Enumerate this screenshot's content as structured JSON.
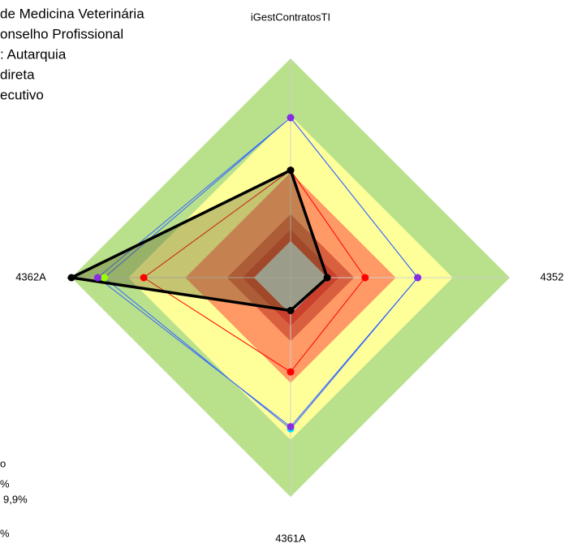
{
  "chart_data": {
    "type": "radar",
    "axes": [
      "iGestContratosTI",
      "4352",
      "4361A",
      "4362A"
    ],
    "rlim": [
      0,
      1
    ],
    "bands": [
      {
        "value": 1.0,
        "color": "#b9e08b"
      },
      {
        "value": 0.74,
        "color": "#ffff99"
      },
      {
        "value": 0.48,
        "color": "#ff9966"
      },
      {
        "value": 0.29,
        "color": "#d9603f"
      },
      {
        "value": 0.22,
        "color": "#c9402c"
      },
      {
        "value": 0.167,
        "color": "#c0c0c0"
      }
    ],
    "series": [
      {
        "color": "#3366ff",
        "values": [
          0.73,
          0.58,
          0.69,
          0.85
        ],
        "point_colors": [
          "#00e5ff",
          "#00e5ff",
          "#00e5ff",
          "#99ff00"
        ],
        "width": 1
      },
      {
        "color": "#3366ff",
        "values": [
          0.73,
          0.58,
          0.68,
          0.88
        ],
        "point_colors": [
          "#8a2be2",
          "#8a2be2",
          "#8a2be2",
          "#8a2be2"
        ],
        "width": 1
      },
      {
        "color": "#ff0000",
        "values": [
          0.49,
          0.34,
          0.43,
          0.67
        ],
        "point_colors": [
          "#ff0000",
          "#ff0000",
          "#ff0000",
          "#ff0000"
        ],
        "width": 1
      },
      {
        "color": "#000000",
        "values": [
          0.49,
          0.167,
          0.15,
          1.0
        ],
        "point_colors": [
          "#000000",
          "#000000",
          "#000000",
          "#000000"
        ],
        "width": 3.5,
        "fill": "rgba(90,90,40,0.35)"
      }
    ],
    "legend_top": [
      "de Medicina Veterinária",
      "onselho Profissional",
      ": Autarquia",
      "direta",
      "ecutivo"
    ],
    "legend_bottom": [
      "o",
      "%",
      "9,9%",
      "%"
    ]
  }
}
